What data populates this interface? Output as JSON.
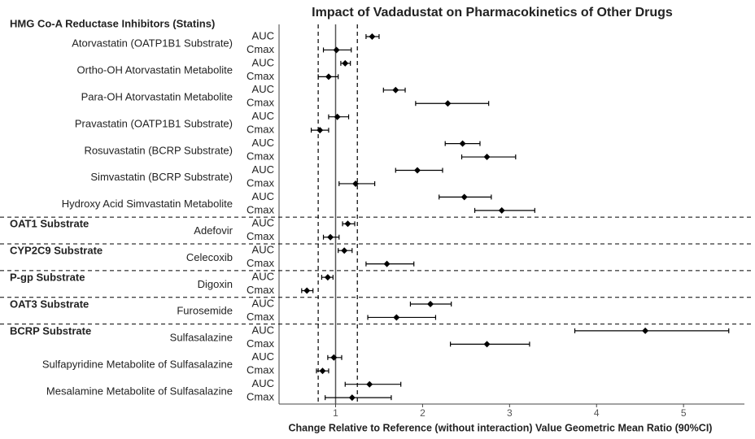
{
  "chart_data": {
    "type": "forest",
    "title": "Impact of Vadadustat  on Pharmacokinetics  of Other Drugs",
    "x_label": "Change Relative to Reference (without interaction) Value Geometric Mean Ratio (90%CI)",
    "xlim": [
      0.35,
      5.7
    ],
    "xticks": [
      1,
      2,
      3,
      4,
      5
    ],
    "ref_lines": [
      0.8,
      1,
      1.25
    ],
    "color": "#000000",
    "groups": [
      {
        "header": "HMG Co-A Reductase Inhibitors (Statins)",
        "drugs": [
          {
            "name": "Atorvastatin (OATP1B1 Substrate)",
            "rows": [
              {
                "metric": "AUC",
                "estimate": 1.42,
                "low": 1.35,
                "high": 1.5
              },
              {
                "metric": "Cmax",
                "estimate": 1.01,
                "low": 0.86,
                "high": 1.18
              }
            ]
          },
          {
            "name": "Ortho-OH Atorvastatin Metabolite",
            "rows": [
              {
                "metric": "AUC",
                "estimate": 1.11,
                "low": 1.06,
                "high": 1.17
              },
              {
                "metric": "Cmax",
                "estimate": 0.92,
                "low": 0.8,
                "high": 1.03
              }
            ]
          },
          {
            "name": "Para-OH Atorvastatin Metabolite",
            "rows": [
              {
                "metric": "AUC",
                "estimate": 1.69,
                "low": 1.55,
                "high": 1.8
              },
              {
                "metric": "Cmax",
                "estimate": 2.29,
                "low": 1.92,
                "high": 2.76
              }
            ]
          },
          {
            "name": "Pravastatin (OATP1B1 Substrate)",
            "rows": [
              {
                "metric": "AUC",
                "estimate": 1.02,
                "low": 0.92,
                "high": 1.15
              },
              {
                "metric": "Cmax",
                "estimate": 0.82,
                "low": 0.72,
                "high": 0.92
              }
            ]
          },
          {
            "name": "Rosuvastatin (BCRP Substrate)",
            "rows": [
              {
                "metric": "AUC",
                "estimate": 2.46,
                "low": 2.26,
                "high": 2.66
              },
              {
                "metric": "Cmax",
                "estimate": 2.74,
                "low": 2.45,
                "high": 3.07
              }
            ]
          },
          {
            "name": "Simvastatin (BCRP Substrate)",
            "rows": [
              {
                "metric": "AUC",
                "estimate": 1.94,
                "low": 1.69,
                "high": 2.23
              },
              {
                "metric": "Cmax",
                "estimate": 1.23,
                "low": 1.04,
                "high": 1.45
              }
            ]
          },
          {
            "name": "Hydroxy Acid Simvastatin Metabolite",
            "rows": [
              {
                "metric": "AUC",
                "estimate": 2.48,
                "low": 2.19,
                "high": 2.79
              },
              {
                "metric": "Cmax",
                "estimate": 2.91,
                "low": 2.6,
                "high": 3.29
              }
            ]
          }
        ]
      },
      {
        "header": "OAT1 Substrate",
        "drugs": [
          {
            "name": "Adefovir",
            "rows": [
              {
                "metric": "AUC",
                "estimate": 1.14,
                "low": 1.08,
                "high": 1.22
              },
              {
                "metric": "Cmax",
                "estimate": 0.94,
                "low": 0.86,
                "high": 1.04
              }
            ]
          }
        ]
      },
      {
        "header": "CYP2C9 Substrate",
        "drugs": [
          {
            "name": "Celecoxib",
            "rows": [
              {
                "metric": "AUC",
                "estimate": 1.1,
                "low": 1.03,
                "high": 1.19
              },
              {
                "metric": "Cmax",
                "estimate": 1.59,
                "low": 1.35,
                "high": 1.9
              }
            ]
          }
        ]
      },
      {
        "header": "P-gp Substrate",
        "drugs": [
          {
            "name": "Digoxin",
            "rows": [
              {
                "metric": "AUC",
                "estimate": 0.91,
                "low": 0.84,
                "high": 0.97
              },
              {
                "metric": "Cmax",
                "estimate": 0.67,
                "low": 0.61,
                "high": 0.74
              }
            ]
          }
        ]
      },
      {
        "header": "OAT3 Substrate",
        "drugs": [
          {
            "name": "Furosemide",
            "rows": [
              {
                "metric": "AUC",
                "estimate": 2.09,
                "low": 1.86,
                "high": 2.33
              },
              {
                "metric": "Cmax",
                "estimate": 1.7,
                "low": 1.37,
                "high": 2.15
              }
            ]
          }
        ]
      },
      {
        "header": "BCRP Substrate",
        "drugs": [
          {
            "name": "Sulfasalazine",
            "rows": [
              {
                "metric": "AUC",
                "estimate": 4.56,
                "low": 3.75,
                "high": 5.52
              },
              {
                "metric": "Cmax",
                "estimate": 2.74,
                "low": 2.32,
                "high": 3.23
              }
            ]
          },
          {
            "name": "Sulfapyridine Metabolite of Sulfasalazine",
            "rows": [
              {
                "metric": "AUC",
                "estimate": 0.98,
                "low": 0.91,
                "high": 1.07
              },
              {
                "metric": "Cmax",
                "estimate": 0.85,
                "low": 0.78,
                "high": 0.92
              }
            ]
          },
          {
            "name": "Mesalamine Metabolite of Sulfasalazine",
            "rows": [
              {
                "metric": "AUC",
                "estimate": 1.39,
                "low": 1.11,
                "high": 1.75
              },
              {
                "metric": "Cmax",
                "estimate": 1.19,
                "low": 0.88,
                "high": 1.64
              }
            ]
          }
        ]
      }
    ]
  }
}
